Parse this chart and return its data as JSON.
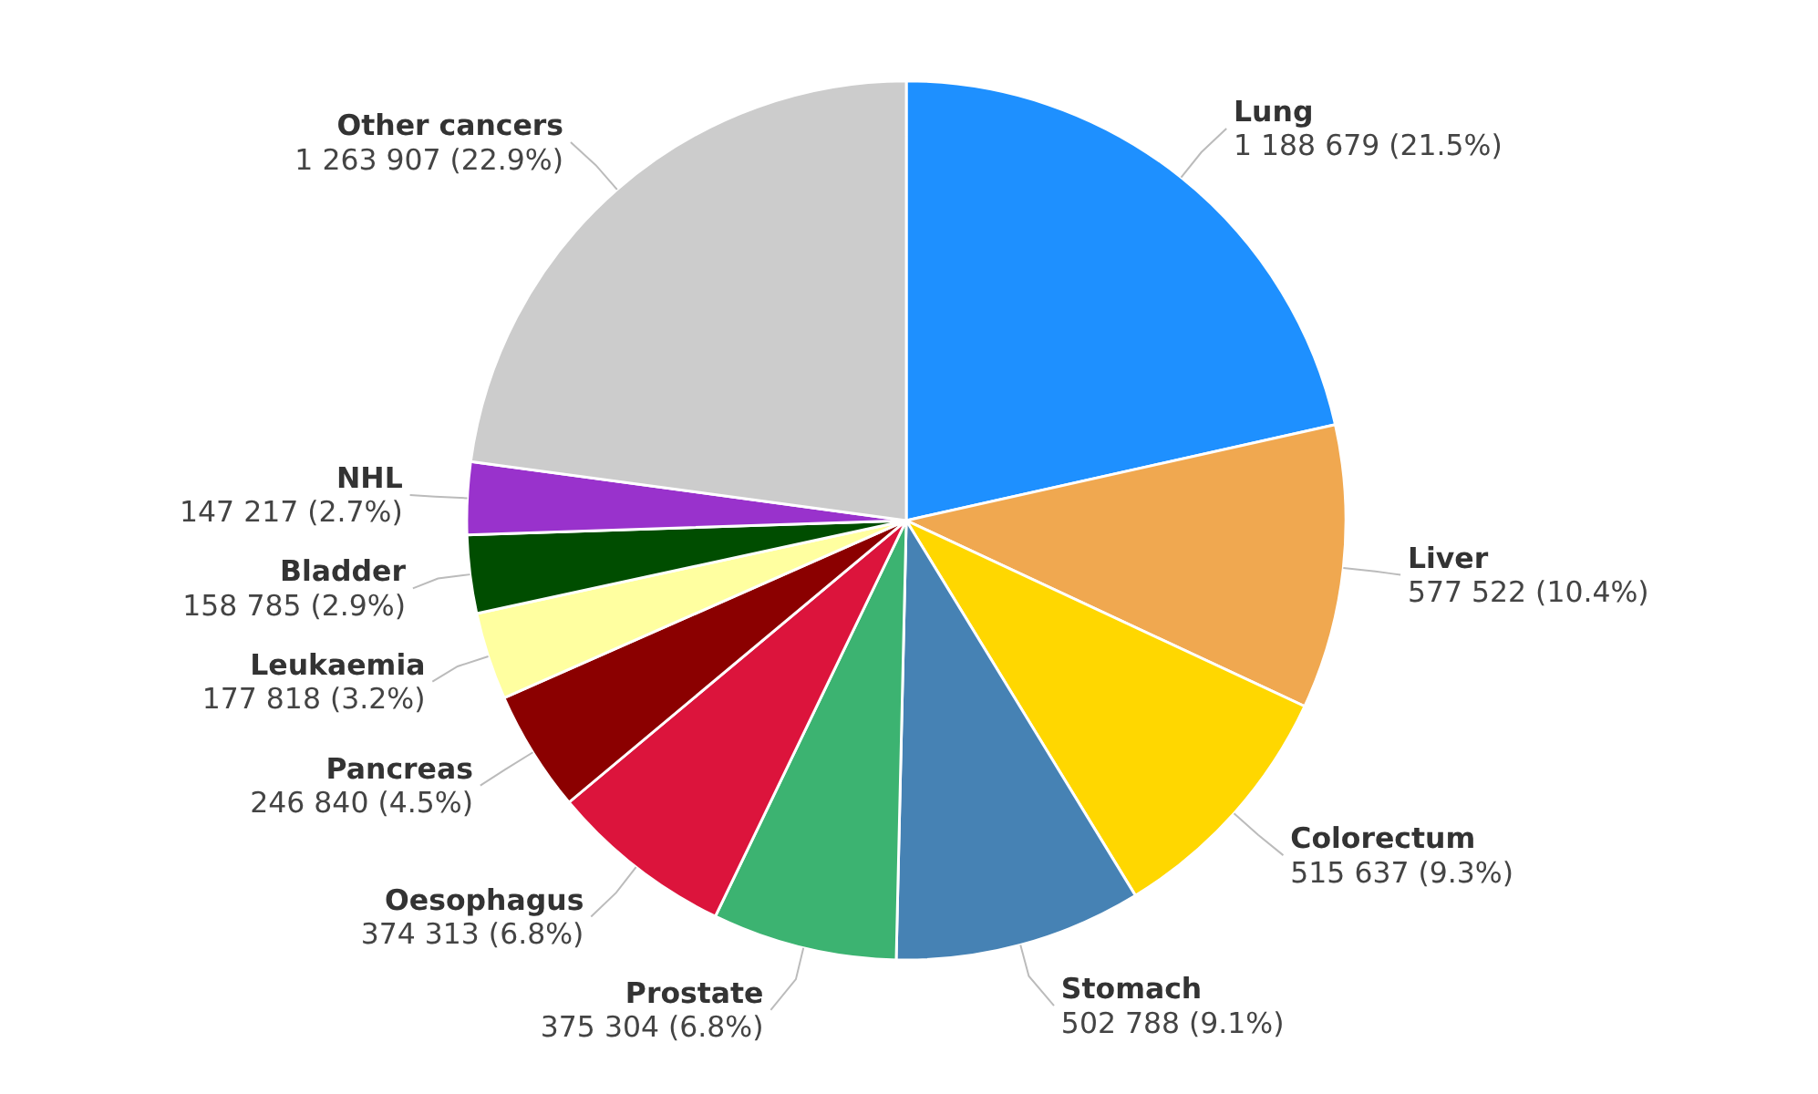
{
  "chart_data": {
    "type": "pie",
    "categories": [
      "Lung",
      "Liver",
      "Colorectum",
      "Stomach",
      "Prostate",
      "Oesophagus",
      "Pancreas",
      "Leukaemia",
      "Bladder",
      "NHL",
      "Other cancers"
    ],
    "values": [
      1188679,
      577522,
      515637,
      502788,
      375304,
      374313,
      246840,
      177818,
      158785,
      147217,
      1263907
    ],
    "colors": [
      "#1e90ff",
      "#f0a850",
      "#ffd700",
      "#4682b4",
      "#3cb371",
      "#dc143c",
      "#8b0000",
      "#ffffa0",
      "#004d00",
      "#9932cc",
      "#cccccc"
    ],
    "value_labels": [
      "1 188 679 (21.5%)",
      "577 522 (10.4%)",
      "515 637 (9.3%)",
      "502 788 (9.1%)",
      "375 304 (6.8%)",
      "374 313 (6.8%)",
      "246 840 (4.5%)",
      "177 818 (3.2%)",
      "158 785 (2.9%)",
      "147 217 (2.7%)",
      "1 263 907 (22.9%)"
    ]
  }
}
